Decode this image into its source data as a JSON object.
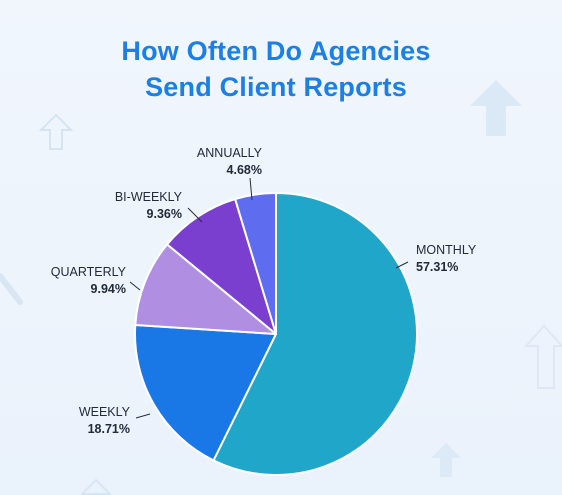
{
  "title_lines": [
    "How Often Do Agencies",
    "Send Client Reports"
  ],
  "chart_data": {
    "type": "pie",
    "title": "How Often Do Agencies Send Client Reports",
    "slices": [
      {
        "label": "MONTHLY",
        "value": 57.31,
        "value_label": "57.31%",
        "color": "#1fa6c9"
      },
      {
        "label": "WEEKLY",
        "value": 18.71,
        "value_label": "18.71%",
        "color": "#1a78e6"
      },
      {
        "label": "QUARTERLY",
        "value": 9.94,
        "value_label": "9.94%",
        "color": "#b08fe3"
      },
      {
        "label": "BI-WEEKLY",
        "value": 9.36,
        "value_label": "9.36%",
        "color": "#7b3fd0"
      },
      {
        "label": "ANNUALLY",
        "value": 4.68,
        "value_label": "4.68%",
        "color": "#5e6cf0"
      }
    ],
    "start_angle_degrees": 0,
    "direction": "clockwise",
    "legend": "none",
    "labels": "outside"
  },
  "decorations": {
    "background_icon": "arrow-up-icon",
    "background_color": "#eef4fb"
  }
}
